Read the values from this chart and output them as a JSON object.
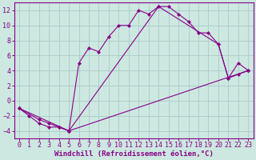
{
  "xlabel": "Windchill (Refroidissement éolien,°C)",
  "background_color": "#cce8e0",
  "line_color": "#880088",
  "grid_color": "#aacccc",
  "xlim": [
    -0.5,
    23.5
  ],
  "ylim": [
    -5,
    13
  ],
  "xticks": [
    0,
    1,
    2,
    3,
    4,
    5,
    6,
    7,
    8,
    9,
    10,
    11,
    12,
    13,
    14,
    15,
    16,
    17,
    18,
    19,
    20,
    21,
    22,
    23
  ],
  "yticks": [
    -4,
    -2,
    0,
    2,
    4,
    6,
    8,
    10,
    12
  ],
  "series1_x": [
    0,
    1,
    2,
    3,
    4,
    5,
    6,
    7,
    8,
    9,
    10,
    11,
    12,
    13,
    14,
    15,
    16,
    17,
    18,
    19,
    20,
    21,
    22,
    23
  ],
  "series1_y": [
    -1,
    -2,
    -3,
    -3.5,
    -3.5,
    -4,
    5,
    7,
    6.5,
    8.5,
    10,
    10,
    12,
    11.5,
    12.5,
    12.5,
    11.5,
    10.5,
    9,
    9,
    7.5,
    3,
    5,
    4
  ],
  "series2_x": [
    0,
    2,
    3,
    4,
    5,
    14,
    20,
    21,
    22,
    23
  ],
  "series2_y": [
    -1,
    -2.5,
    -3,
    -3.5,
    -4,
    12.5,
    7.5,
    3,
    3.5,
    4
  ],
  "series3_x": [
    0,
    5,
    23
  ],
  "series3_y": [
    -1,
    -4,
    4
  ],
  "tick_fontsize": 6,
  "label_fontsize": 6.5
}
